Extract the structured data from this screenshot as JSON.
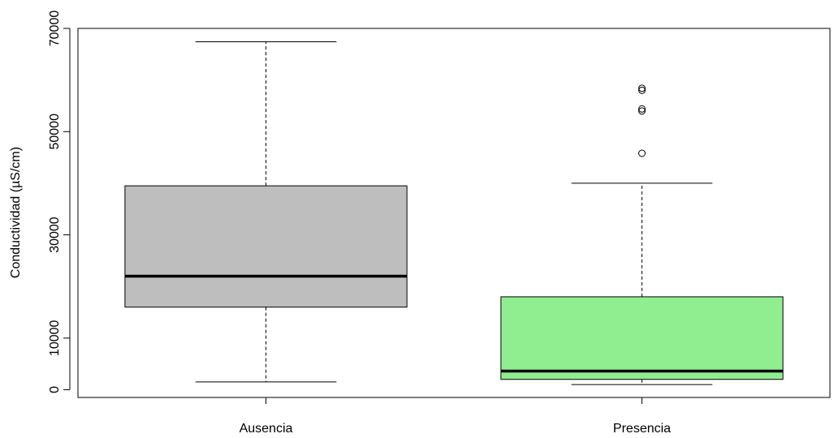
{
  "chart_data": {
    "type": "boxplot",
    "title": "",
    "xlabel": "",
    "ylabel": "Conductividad (µS/cm)",
    "ylim": [
      -1500,
      70000
    ],
    "yticks": [
      0,
      10000,
      30000,
      50000,
      70000
    ],
    "ytick_labels": [
      "0",
      "10000",
      "30000",
      "50000",
      "70000"
    ],
    "grid": false,
    "categories": [
      "Ausencia",
      "Presencia"
    ],
    "series": [
      {
        "category": "Ausencia",
        "color": "#bebebe",
        "whisker_low": 1500,
        "q1": 16000,
        "median": 22000,
        "q3": 39500,
        "whisker_high": 67400,
        "outliers": []
      },
      {
        "category": "Presencia",
        "color": "#90ee90",
        "whisker_low": 1000,
        "q1": 2000,
        "median": 3600,
        "q3": 18000,
        "whisker_high": 40000,
        "outliers": [
          45800,
          54000,
          54400,
          58000,
          58400
        ]
      }
    ]
  }
}
